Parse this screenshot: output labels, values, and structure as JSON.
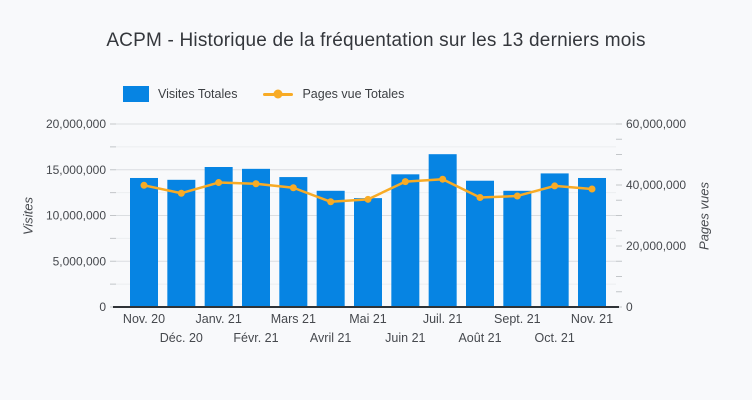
{
  "chart_data": {
    "type": "bar",
    "combo": "bar+line",
    "title": "ACPM - Historique de la fréquentation sur les 13 derniers mois",
    "categories": [
      "Nov. 20",
      "Déc. 20",
      "Janv. 21",
      "Févr. 21",
      "Mars 21",
      "Avril 21",
      "Mai 21",
      "Juin 21",
      "Juil. 21",
      "Août 21",
      "Sept. 21",
      "Oct. 21",
      "Nov. 21"
    ],
    "series": [
      {
        "name": "Visites Totales",
        "type": "bar",
        "axis": "left",
        "values": [
          14100000,
          13900000,
          15300000,
          15100000,
          14200000,
          12700000,
          11900000,
          14500000,
          16700000,
          13800000,
          12700000,
          14600000,
          14100000
        ]
      },
      {
        "name": "Pages vue Totales",
        "type": "line",
        "axis": "right",
        "values": [
          39900000,
          37300000,
          40800000,
          40400000,
          39100000,
          34500000,
          35300000,
          41100000,
          41900000,
          35900000,
          36400000,
          39700000,
          38700000
        ]
      }
    ],
    "axis_left": {
      "label": "Visites",
      "min": 0,
      "max": 20000000,
      "step": 5000000,
      "minor_step": 2500000
    },
    "axis_right": {
      "label": "Pages vues",
      "min": 0,
      "max": 60000000,
      "step": 20000000,
      "minor_step": 5000000
    },
    "legend_position": "top",
    "grid": "horizontal",
    "x_labels_staggered": true
  },
  "colors": {
    "bar": "#0684e3",
    "line": "#f8ab25",
    "grid_major": "#dbdee1",
    "grid_minor": "#eceef0",
    "tick": "#c3c6c9",
    "axis_line": "#2f3337",
    "text": "#46494e",
    "title": "#34373c",
    "background": "#f8f9fb"
  }
}
